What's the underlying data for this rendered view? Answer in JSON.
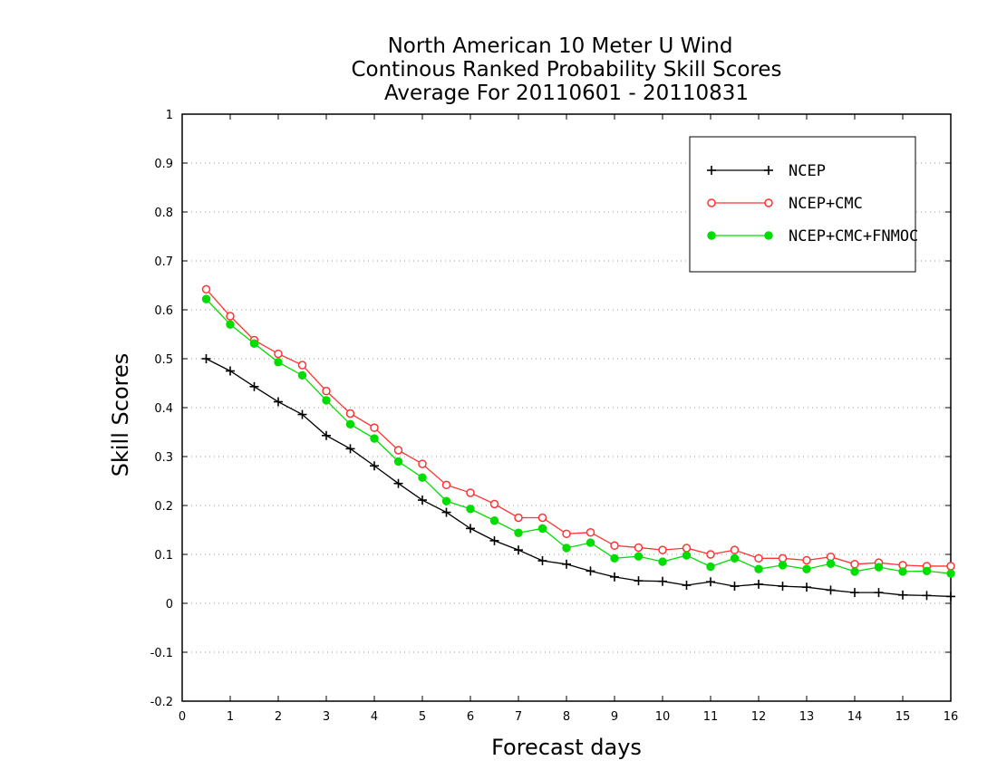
{
  "chart_data": {
    "type": "line",
    "title_lines": [
      "North American 10 Meter U Wind",
      "Continous Ranked Probability Skill Scores",
      "Average For 20110601 - 20110831"
    ],
    "xlabel": "Forecast days",
    "ylabel": "Skill Scores",
    "xlim": [
      0,
      16
    ],
    "ylim": [
      -0.2,
      1
    ],
    "x_ticks": [
      0,
      1,
      2,
      3,
      4,
      5,
      6,
      7,
      8,
      9,
      10,
      11,
      12,
      13,
      14,
      15,
      16
    ],
    "x_tick_labels": [
      "0",
      "1",
      "2",
      "3",
      "4",
      "5",
      "6",
      "7",
      "8",
      "9",
      "10",
      "11",
      "12",
      "13",
      "14",
      "15",
      "16"
    ],
    "y_ticks": [
      -0.2,
      -0.1,
      0,
      0.1,
      0.2,
      0.3,
      0.4,
      0.5,
      0.6,
      0.7,
      0.8,
      0.9,
      1
    ],
    "y_tick_labels": [
      "-0.2",
      "-0.1",
      "0",
      "0.1",
      "0.2",
      "0.3",
      "0.4",
      "0.5",
      "0.6",
      "0.7",
      "0.8",
      "0.9",
      "1"
    ],
    "grid": true,
    "legend_position": "top-right",
    "x": [
      0.5,
      1.0,
      1.5,
      2.0,
      2.5,
      3.0,
      3.5,
      4.0,
      4.5,
      5.0,
      5.5,
      6.0,
      6.5,
      7.0,
      7.5,
      8.0,
      8.5,
      9.0,
      9.5,
      10.0,
      10.5,
      11.0,
      11.5,
      12.0,
      12.5,
      13.0,
      13.5,
      14.0,
      14.5,
      15.0,
      15.5,
      16.0
    ],
    "series": [
      {
        "name": "NCEP",
        "color": "#000000",
        "marker": "plus",
        "values": [
          0.5,
          0.475,
          0.443,
          0.412,
          0.386,
          0.343,
          0.316,
          0.281,
          0.245,
          0.211,
          0.186,
          0.153,
          0.128,
          0.109,
          0.087,
          0.08,
          0.066,
          0.054,
          0.046,
          0.045,
          0.037,
          0.044,
          0.035,
          0.039,
          0.035,
          0.033,
          0.027,
          0.022,
          0.022,
          0.017,
          0.016,
          0.014
        ]
      },
      {
        "name": "NCEP+CMC",
        "color": "#ff3333",
        "marker": "open-circle",
        "values": [
          0.642,
          0.587,
          0.538,
          0.51,
          0.487,
          0.434,
          0.388,
          0.359,
          0.313,
          0.285,
          0.242,
          0.226,
          0.203,
          0.175,
          0.175,
          0.142,
          0.145,
          0.118,
          0.114,
          0.109,
          0.113,
          0.1,
          0.109,
          0.092,
          0.092,
          0.088,
          0.095,
          0.08,
          0.083,
          0.078,
          0.076,
          0.076
        ]
      },
      {
        "name": "NCEP+CMC+FNMOC",
        "color": "#00dd00",
        "marker": "filled-circle",
        "values": [
          0.622,
          0.57,
          0.531,
          0.493,
          0.466,
          0.415,
          0.366,
          0.337,
          0.29,
          0.257,
          0.209,
          0.193,
          0.169,
          0.144,
          0.153,
          0.113,
          0.124,
          0.092,
          0.096,
          0.085,
          0.098,
          0.075,
          0.092,
          0.07,
          0.078,
          0.07,
          0.081,
          0.065,
          0.074,
          0.065,
          0.066,
          0.061
        ]
      }
    ]
  }
}
